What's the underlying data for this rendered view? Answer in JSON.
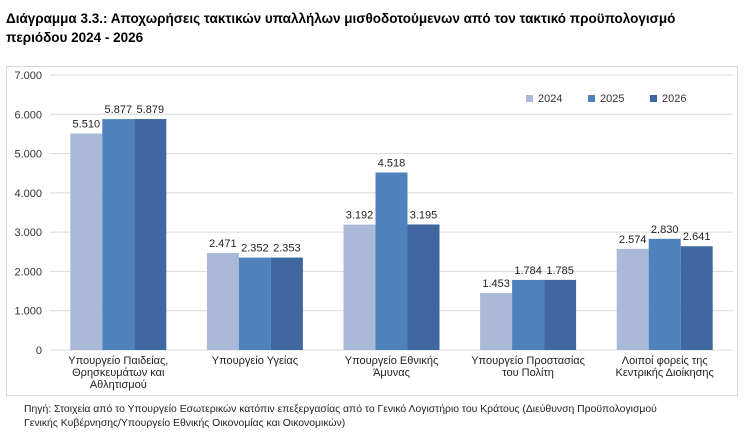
{
  "header": {
    "title_line1": "Διάγραμμα 3.3.: Αποχωρήσεις τακτικών υπαλλήλων μισθοδοτούμενων από τον τακτικό προϋπολογισμό",
    "title_line2": "περιόδου 2024 - 2026"
  },
  "footer": {
    "source_line1": "Πηγή: Στοιχεία από το Υπουργείο Εσωτερικών κατόπιν επεξεργασίας από το Γενικό Λογιστήριο του Κράτους (Διεύθυνση Προϋπολογισμού",
    "source_line2": "Γενικής Κυβέρνησης/Υπουργείο Εθνικής Οικονομίας και Οικονομικών)"
  },
  "colors": {
    "series_2024": "#a9b9d7",
    "series_2025": "#4f81bd",
    "series_2026": "#3f67a0",
    "grid": "#d9d9d9"
  },
  "chart_data": {
    "type": "bar",
    "title": "Διάγραμμα 3.3.: Αποχωρήσεις τακτικών υπαλλήλων μισθοδοτούμενων από τον τακτικό προϋπολογισμό περιόδου 2024 - 2026",
    "xlabel": "",
    "ylabel": "",
    "ylim": [
      0,
      7000
    ],
    "yticks": [
      0,
      1000,
      2000,
      3000,
      4000,
      5000,
      6000,
      7000
    ],
    "ytick_labels": [
      "0",
      "1.000",
      "2.000",
      "3.000",
      "4.000",
      "5.000",
      "6.000",
      "7.000"
    ],
    "legend_position": "top-right",
    "grid": true,
    "categories": [
      [
        "Υπουργείο Παιδείας,",
        "Θρησκευμάτων και",
        "Αθλητισμού"
      ],
      [
        "Υπουργείο Υγείας"
      ],
      [
        "Υπουργείο Εθνικής",
        "Άμυνας"
      ],
      [
        "Υπουργείο Προστασίας",
        "του Πολίτη"
      ],
      [
        "Λοιποί φορείς της",
        "Κεντρικής Διοίκησης"
      ]
    ],
    "series": [
      {
        "name": "2024",
        "values": [
          5510,
          2471,
          3192,
          1453,
          2574
        ],
        "labels": [
          "5.510",
          "2.471",
          "3.192",
          "1.453",
          "2.574"
        ]
      },
      {
        "name": "2025",
        "values": [
          5877,
          2352,
          4518,
          1784,
          2830
        ],
        "labels": [
          "5.877",
          "2.352",
          "4.518",
          "1.784",
          "2.830"
        ]
      },
      {
        "name": "2026",
        "values": [
          5879,
          2353,
          3195,
          1785,
          2641
        ],
        "labels": [
          "5.879",
          "2.353",
          "3.195",
          "1.785",
          "2.641"
        ]
      }
    ]
  }
}
